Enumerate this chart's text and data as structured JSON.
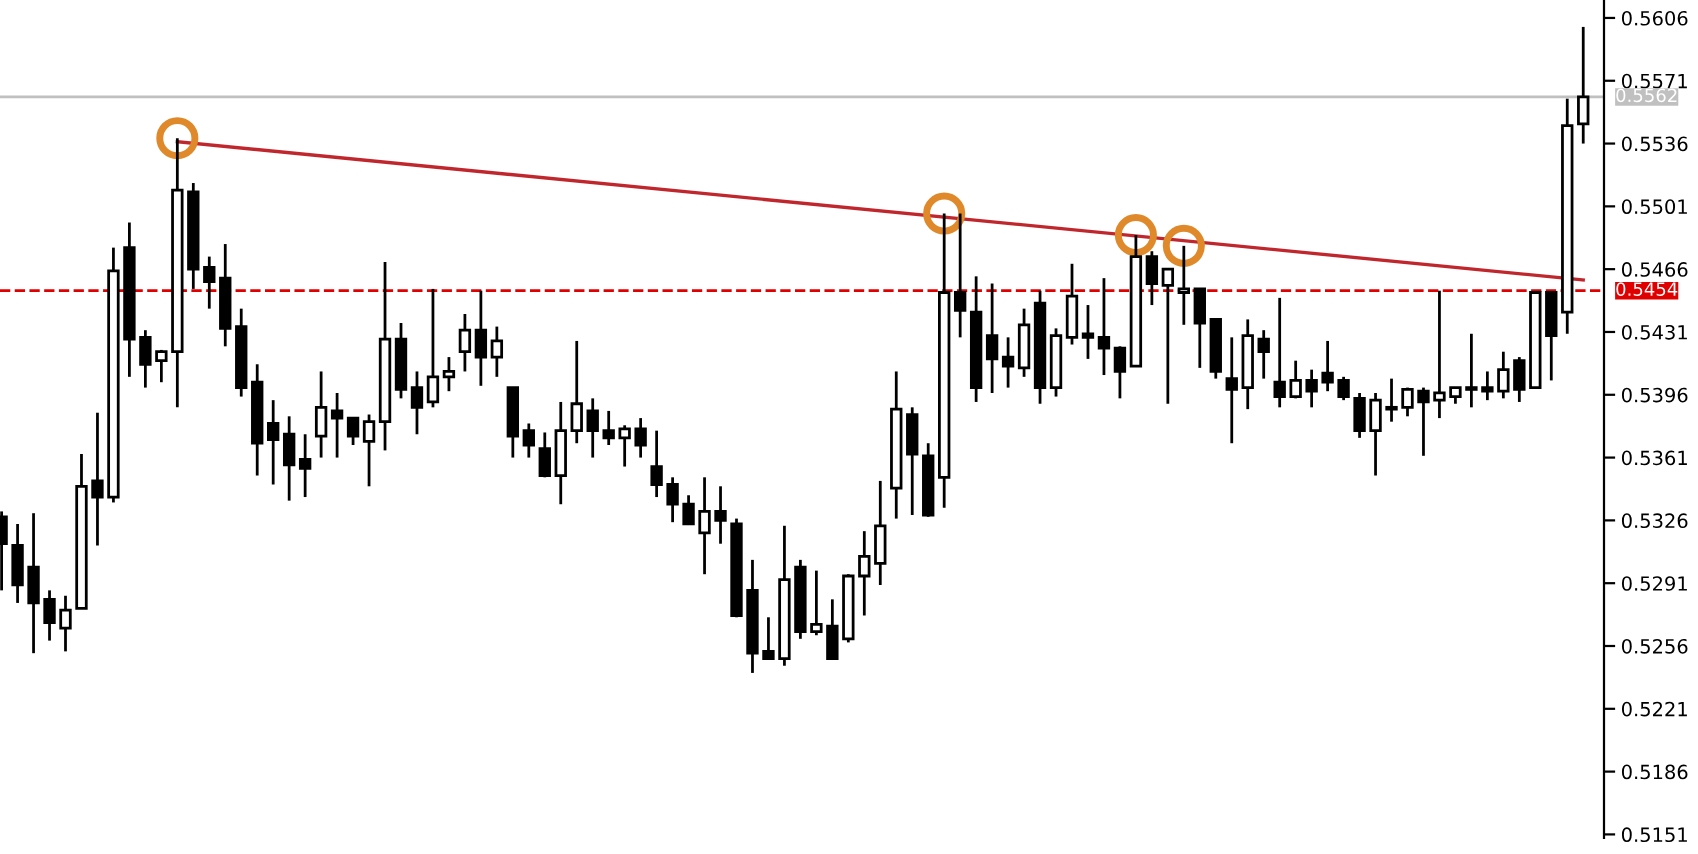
{
  "chart_data": {
    "type": "candlestick",
    "categories": [
      null,
      null,
      null,
      null,
      null,
      null,
      null,
      null,
      null,
      null,
      null,
      null,
      null,
      null,
      null,
      null,
      null,
      null,
      null,
      null,
      null,
      null,
      null,
      null,
      null,
      null,
      null,
      null,
      null,
      null,
      null,
      null,
      null,
      null,
      null,
      null,
      null,
      null,
      null,
      null,
      null,
      null,
      null,
      null,
      null,
      null,
      null,
      null,
      null,
      null,
      null,
      null,
      null,
      null,
      null,
      null,
      null,
      null,
      null,
      null,
      null,
      null,
      null,
      null,
      null,
      null,
      null,
      null,
      null,
      null,
      null,
      null,
      null,
      null,
      null,
      null,
      null,
      null,
      null,
      null,
      null,
      null,
      null,
      null,
      null,
      null,
      null,
      null,
      null,
      null,
      null,
      null,
      null,
      null,
      null,
      null,
      null,
      null,
      null,
      null
    ],
    "series": [
      {
        "color": "#000000",
        "ohlc": [
          [
            0.5328,
            0.5331,
            0.5287,
            0.5313
          ],
          [
            0.5312,
            0.5324,
            0.528,
            0.529
          ],
          [
            0.53,
            0.533,
            0.5252,
            0.528
          ],
          [
            0.5282,
            0.5287,
            0.5259,
            0.5269
          ],
          [
            0.5266,
            0.5284,
            0.5253,
            0.5276
          ],
          [
            0.5277,
            0.5363,
            0.5277,
            0.5345
          ],
          [
            0.5348,
            0.5386,
            0.5312,
            0.5339
          ],
          [
            0.5339,
            0.5478,
            0.5336,
            0.5465
          ],
          [
            0.5478,
            0.5492,
            0.5406,
            0.5427
          ],
          [
            0.5428,
            0.5432,
            0.54,
            0.5413
          ],
          [
            0.5415,
            0.5421,
            0.5403,
            0.542
          ],
          [
            0.542,
            0.5539,
            0.5389,
            0.551
          ],
          [
            0.5509,
            0.5514,
            0.5455,
            0.5466
          ],
          [
            0.5467,
            0.5473,
            0.5444,
            0.5459
          ],
          [
            0.5461,
            0.548,
            0.5423,
            0.5433
          ],
          [
            0.5434,
            0.5444,
            0.5395,
            0.54
          ],
          [
            0.5403,
            0.5413,
            0.5351,
            0.5369
          ],
          [
            0.538,
            0.5393,
            0.5346,
            0.5371
          ],
          [
            0.5374,
            0.5384,
            0.5337,
            0.5357
          ],
          [
            0.536,
            0.5374,
            0.5339,
            0.5355
          ],
          [
            0.5373,
            0.5409,
            0.5361,
            0.5389
          ],
          [
            0.5387,
            0.5397,
            0.5361,
            0.5383
          ],
          [
            0.5383,
            0.5383,
            0.5368,
            0.5373
          ],
          [
            0.537,
            0.5385,
            0.5345,
            0.5381
          ],
          [
            0.5381,
            0.547,
            0.5365,
            0.5427
          ],
          [
            0.5427,
            0.5436,
            0.5394,
            0.5399
          ],
          [
            0.54,
            0.5409,
            0.5374,
            0.5389
          ],
          [
            0.5392,
            0.5455,
            0.5389,
            0.5406
          ],
          [
            0.5406,
            0.5417,
            0.5398,
            0.5409
          ],
          [
            0.542,
            0.5441,
            0.5409,
            0.5432
          ],
          [
            0.5432,
            0.5454,
            0.5401,
            0.5417
          ],
          [
            0.5417,
            0.5434,
            0.5406,
            0.5426
          ],
          [
            0.54,
            0.54,
            0.5361,
            0.5373
          ],
          [
            0.5376,
            0.538,
            0.5361,
            0.5368
          ],
          [
            0.5366,
            0.5375,
            0.535,
            0.5351
          ],
          [
            0.5351,
            0.5392,
            0.5335,
            0.5376
          ],
          [
            0.5376,
            0.5426,
            0.5369,
            0.5391
          ],
          [
            0.5387,
            0.5394,
            0.5361,
            0.5376
          ],
          [
            0.5376,
            0.5387,
            0.5368,
            0.5372
          ],
          [
            0.5372,
            0.5379,
            0.5356,
            0.5377
          ],
          [
            0.5377,
            0.5383,
            0.5361,
            0.5368
          ],
          [
            0.5356,
            0.5376,
            0.5339,
            0.5346
          ],
          [
            0.5346,
            0.535,
            0.5325,
            0.5335
          ],
          [
            0.5335,
            0.534,
            0.5324,
            0.5324
          ],
          [
            0.5319,
            0.535,
            0.5296,
            0.5331
          ],
          [
            0.5331,
            0.5345,
            0.5313,
            0.5326
          ],
          [
            0.5324,
            0.5327,
            0.5272,
            0.5273
          ],
          [
            0.5287,
            0.5304,
            0.5241,
            0.5252
          ],
          [
            0.5253,
            0.5272,
            0.5249,
            0.5249
          ],
          [
            0.5249,
            0.5323,
            0.5245,
            0.5293
          ],
          [
            0.53,
            0.5304,
            0.526,
            0.5264
          ],
          [
            0.5264,
            0.5298,
            0.5262,
            0.5268
          ],
          [
            0.5267,
            0.5282,
            0.5249,
            0.5249
          ],
          [
            0.526,
            0.5296,
            0.5258,
            0.5295
          ],
          [
            0.5295,
            0.532,
            0.5273,
            0.5306
          ],
          [
            0.5302,
            0.5348,
            0.529,
            0.5323
          ],
          [
            0.5344,
            0.5409,
            0.5327,
            0.5388
          ],
          [
            0.5385,
            0.5389,
            0.5329,
            0.5363
          ],
          [
            0.5362,
            0.5369,
            0.5328,
            0.5329
          ],
          [
            0.535,
            0.5497,
            0.5333,
            0.5453
          ],
          [
            0.5453,
            0.5497,
            0.5428,
            0.5443
          ],
          [
            0.5442,
            0.5462,
            0.5392,
            0.54
          ],
          [
            0.5429,
            0.5458,
            0.5397,
            0.5416
          ],
          [
            0.5417,
            0.5428,
            0.54,
            0.5412
          ],
          [
            0.5411,
            0.5444,
            0.5406,
            0.5435
          ],
          [
            0.5447,
            0.5454,
            0.5391,
            0.54
          ],
          [
            0.54,
            0.5433,
            0.5395,
            0.5429
          ],
          [
            0.5428,
            0.5469,
            0.5424,
            0.5451
          ],
          [
            0.543,
            0.5446,
            0.5416,
            0.5428
          ],
          [
            0.5428,
            0.5461,
            0.5407,
            0.5422
          ],
          [
            0.5422,
            0.5423,
            0.5394,
            0.5409
          ],
          [
            0.5412,
            0.5485,
            0.5412,
            0.5473
          ],
          [
            0.5473,
            0.5476,
            0.5446,
            0.5458
          ],
          [
            0.5457,
            0.5466,
            0.5391,
            0.5466
          ],
          [
            0.5453,
            0.5479,
            0.5435,
            0.5455
          ],
          [
            0.5455,
            0.5455,
            0.5411,
            0.5436
          ],
          [
            0.5438,
            0.5438,
            0.5405,
            0.5409
          ],
          [
            0.5405,
            0.5428,
            0.5369,
            0.5399
          ],
          [
            0.54,
            0.5438,
            0.5388,
            0.5429
          ],
          [
            0.5427,
            0.5432,
            0.5405,
            0.542
          ],
          [
            0.5403,
            0.545,
            0.5389,
            0.5395
          ],
          [
            0.5395,
            0.5415,
            0.5394,
            0.5404
          ],
          [
            0.5404,
            0.541,
            0.5389,
            0.5398
          ],
          [
            0.5408,
            0.5426,
            0.5398,
            0.5403
          ],
          [
            0.5404,
            0.5406,
            0.5393,
            0.5395
          ],
          [
            0.5394,
            0.5397,
            0.5372,
            0.5376
          ],
          [
            0.5376,
            0.5397,
            0.5351,
            0.5393
          ],
          [
            0.5389,
            0.5405,
            0.5381,
            0.5388
          ],
          [
            0.5389,
            0.54,
            0.5384,
            0.5399
          ],
          [
            0.5398,
            0.54,
            0.5362,
            0.5392
          ],
          [
            0.5393,
            0.5454,
            0.5383,
            0.5397
          ],
          [
            0.5395,
            0.54,
            0.5391,
            0.54
          ],
          [
            0.54,
            0.543,
            0.5389,
            0.5399
          ],
          [
            0.54,
            0.5409,
            0.5393,
            0.5398
          ],
          [
            0.5398,
            0.542,
            0.5394,
            0.541
          ],
          [
            0.5415,
            0.5417,
            0.5392,
            0.5399
          ],
          [
            0.54,
            0.5453,
            0.54,
            0.5453
          ],
          [
            0.5453,
            0.5453,
            0.5404,
            0.5429
          ],
          [
            0.5442,
            0.5561,
            0.543,
            0.5546
          ],
          [
            0.5547,
            0.5601,
            0.5536,
            0.5562
          ]
        ]
      },
      {
        "type": "line",
        "color": "#c0272d",
        "values": [
          null,
          null,
          null,
          null,
          null,
          null,
          null,
          null,
          null,
          null,
          null,
          0.5537,
          null,
          null,
          null,
          null,
          null,
          null,
          null,
          null,
          null,
          null,
          null,
          null,
          null,
          null,
          null,
          null,
          null,
          null,
          null,
          null,
          null,
          null,
          null,
          null,
          null,
          null,
          null,
          null,
          null,
          null,
          null,
          null,
          null,
          null,
          null,
          null,
          null,
          null,
          null,
          null,
          null,
          null,
          null,
          null,
          null,
          null,
          null,
          null,
          null,
          null,
          null,
          null,
          null,
          null,
          null,
          null,
          null,
          null,
          null,
          null,
          null,
          null,
          null,
          null,
          null,
          null,
          null,
          null,
          null,
          null,
          null,
          null,
          null,
          null,
          null,
          null,
          null,
          null,
          null,
          null,
          null,
          null,
          null,
          null,
          null,
          null,
          null,
          0.546
        ]
      },
      {
        "type": "scatter",
        "color": "#e0892a",
        "marker": "circle",
        "values": [
          null,
          null,
          null,
          null,
          null,
          null,
          null,
          null,
          null,
          null,
          null,
          0.5539,
          null,
          null,
          null,
          null,
          null,
          null,
          null,
          null,
          null,
          null,
          null,
          null,
          null,
          null,
          null,
          null,
          null,
          null,
          null,
          null,
          null,
          null,
          null,
          null,
          null,
          null,
          null,
          null,
          null,
          null,
          null,
          null,
          null,
          null,
          null,
          null,
          null,
          null,
          null,
          null,
          null,
          null,
          null,
          null,
          null,
          null,
          null,
          0.5497,
          null,
          null,
          null,
          null,
          null,
          null,
          null,
          null,
          null,
          null,
          null,
          0.5485,
          null,
          null,
          0.5479,
          null,
          null,
          null,
          null,
          null,
          null,
          null,
          null,
          null,
          null,
          null,
          null,
          null,
          null,
          null,
          null,
          null,
          null,
          null,
          null,
          null,
          null,
          null,
          null,
          null
        ]
      }
    ],
    "ylim": [
      0.5149,
      0.5616
    ],
    "yticks": [
      0.5151,
      0.5186,
      0.5221,
      0.5256,
      0.5291,
      0.5326,
      0.5361,
      0.5396,
      0.5431,
      0.5466,
      0.5501,
      0.5536,
      0.5571,
      0.5606
    ],
    "ref_lines": [
      {
        "axis": "y",
        "value": 0.5454,
        "label": "0.5454",
        "color": "#e00000",
        "line_style": "dashed"
      },
      {
        "axis": "y",
        "value": 0.5562,
        "label": "0.5562",
        "color": "#c0c0c0",
        "line_style": "solid"
      }
    ],
    "tick_labels": "y",
    "grid": false
  }
}
